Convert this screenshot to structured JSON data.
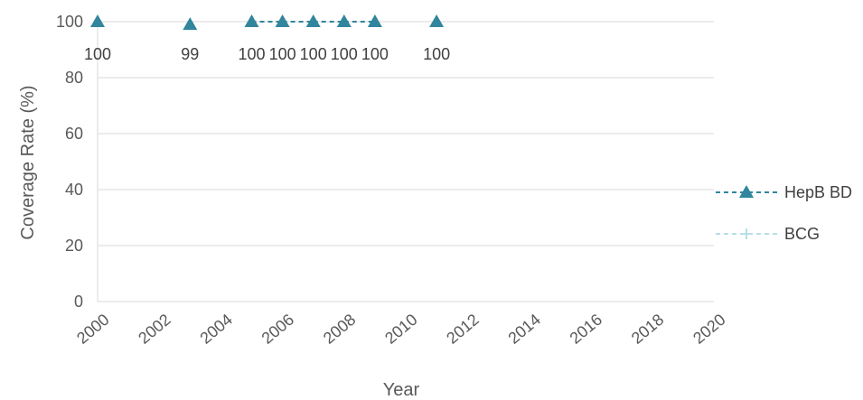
{
  "chart_data": {
    "type": "line",
    "title": "",
    "xlabel": "Year",
    "ylabel": "Coverage Rate (%)",
    "xlim": [
      2000,
      2020
    ],
    "ylim": [
      0,
      100
    ],
    "x_ticks": [
      "2000",
      "2002",
      "2004",
      "2006",
      "2008",
      "2010",
      "2012",
      "2014",
      "2016",
      "2018",
      "2020"
    ],
    "y_ticks": [
      "0",
      "20",
      "40",
      "60",
      "80",
      "100"
    ],
    "grid": "horizontal",
    "legend_position": "right",
    "series": [
      {
        "name": "HepB BD",
        "color": "#31859C",
        "marker": "triangle",
        "line_style": "dashed",
        "points": [
          {
            "x": 2000,
            "y": 100,
            "label": "100"
          },
          {
            "x": 2003,
            "y": 99,
            "label": "99"
          },
          {
            "x": 2005,
            "y": 100,
            "label": "100"
          },
          {
            "x": 2006,
            "y": 100,
            "label": "100"
          },
          {
            "x": 2007,
            "y": 100,
            "label": "100"
          },
          {
            "x": 2008,
            "y": 100,
            "label": "100"
          },
          {
            "x": 2009,
            "y": 100,
            "label": "100"
          },
          {
            "x": 2011,
            "y": 100,
            "label": "100"
          }
        ]
      },
      {
        "name": "BCG",
        "color": "#B7DEE8",
        "marker": "plus",
        "line_style": "dashed",
        "points": []
      }
    ]
  }
}
